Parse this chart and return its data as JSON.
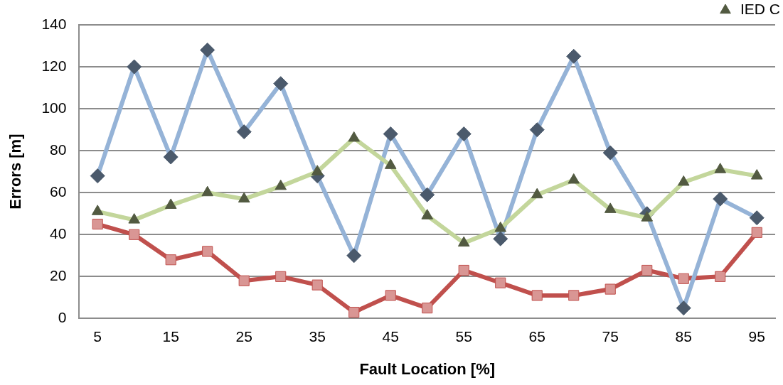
{
  "chart_data": {
    "type": "line",
    "xlabel": "Fault Location [%]",
    "ylabel": "Errors [m]",
    "categories": [
      "5",
      null,
      "15",
      null,
      "25",
      null,
      "35",
      null,
      "45",
      null,
      "55",
      null,
      "65",
      null,
      "75",
      null,
      "85",
      null,
      "95"
    ],
    "series": [
      {
        "color": "#95b3d7",
        "marker": "diamond",
        "values": [
          68,
          120,
          77,
          128,
          89,
          112,
          68,
          30,
          88,
          59,
          88,
          38,
          90,
          125,
          79,
          50,
          5,
          57,
          48
        ]
      },
      {
        "color": "#c0504d",
        "marker": "square",
        "values": [
          45,
          40,
          28,
          32,
          18,
          20,
          16,
          3,
          11,
          5,
          23,
          17,
          11,
          11,
          14,
          23,
          19,
          20,
          41
        ]
      },
      {
        "name": "IED C",
        "color": "#c3d69b",
        "marker": "triangle",
        "values": [
          51,
          47,
          54,
          60,
          57,
          63,
          70,
          86,
          73,
          49,
          36,
          43,
          59,
          66,
          52,
          48,
          65,
          71,
          68
        ]
      }
    ],
    "ylim": [
      0,
      140
    ],
    "yticks": [
      0,
      20,
      40,
      60,
      80,
      100,
      120,
      140
    ],
    "grid": "y",
    "legend": "top right",
    "line_style": "solid"
  }
}
